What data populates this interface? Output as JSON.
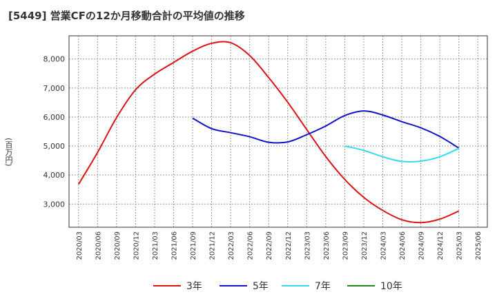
{
  "title": "[5449]  営業CFの12か月移動合計の平均値の推移",
  "chart_data": {
    "type": "line",
    "title": "[5449]  営業CFの12か月移動合計の平均値の推移",
    "xlabel": "",
    "ylabel": "(百万円)",
    "x": [
      "2020/03",
      "2020/06",
      "2020/09",
      "2020/12",
      "2021/03",
      "2021/06",
      "2021/09",
      "2021/12",
      "2022/03",
      "2022/06",
      "2022/09",
      "2022/12",
      "2023/03",
      "2023/06",
      "2023/09",
      "2023/12",
      "2024/03",
      "2024/06",
      "2024/09",
      "2024/12",
      "2025/03",
      "2025/06"
    ],
    "yticks": [
      3000,
      4000,
      5000,
      6000,
      7000,
      8000
    ],
    "ytick_labels": [
      "3,000",
      "4,000",
      "5,000",
      "6,000",
      "7,000",
      "8,000"
    ],
    "ylim": [
      2200,
      8800
    ],
    "grid": true,
    "legend_position": "bottom",
    "series": [
      {
        "name": "3年",
        "color": "#dd1111",
        "values": [
          3680,
          4780,
          5980,
          6940,
          7480,
          7880,
          8270,
          8540,
          8560,
          8120,
          7360,
          6510,
          5570,
          4640,
          3850,
          3230,
          2780,
          2460,
          2360,
          2480,
          2760,
          null
        ]
      },
      {
        "name": "5年",
        "color": "#1111cc",
        "values": [
          null,
          null,
          null,
          null,
          null,
          null,
          5960,
          5600,
          5460,
          5320,
          5130,
          5140,
          5390,
          5690,
          6050,
          6210,
          6070,
          5840,
          5630,
          5330,
          4930,
          null
        ]
      },
      {
        "name": "7年",
        "color": "#33ddee",
        "values": [
          null,
          null,
          null,
          null,
          null,
          null,
          null,
          null,
          null,
          null,
          null,
          null,
          null,
          null,
          5000,
          4850,
          4630,
          4470,
          4480,
          4630,
          4920,
          null
        ]
      },
      {
        "name": "10年",
        "color": "#228822",
        "values": [
          null,
          null,
          null,
          null,
          null,
          null,
          null,
          null,
          null,
          null,
          null,
          null,
          null,
          null,
          null,
          null,
          null,
          null,
          null,
          null,
          null,
          null
        ]
      }
    ]
  }
}
